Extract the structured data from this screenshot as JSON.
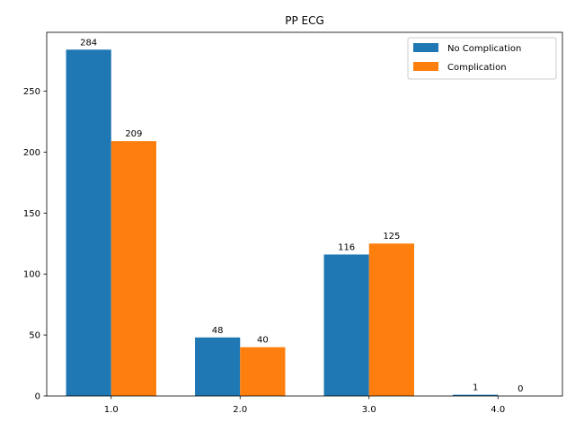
{
  "chart_data": {
    "type": "bar",
    "title": "PP ECG",
    "xlabel": "",
    "ylabel": "",
    "categories": [
      "1.0",
      "2.0",
      "3.0",
      "4.0"
    ],
    "series": [
      {
        "name": "No Complication",
        "values": [
          284,
          48,
          116,
          1
        ],
        "color": "#1f77b4"
      },
      {
        "name": "Complication",
        "values": [
          209,
          40,
          125,
          0
        ],
        "color": "#ff7f0e"
      }
    ],
    "ylim": [
      0,
      298.2
    ],
    "yticks": [
      0,
      50,
      100,
      150,
      200,
      250
    ],
    "grid": false,
    "legend_position": "top-right"
  }
}
